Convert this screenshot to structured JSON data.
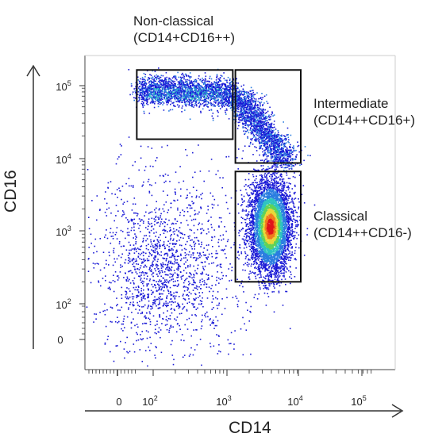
{
  "chart_data": {
    "type": "scatter",
    "xlabel": "CD14",
    "ylabel": "CD16",
    "x_scale": "log",
    "y_scale": "log",
    "x_ticks": [
      {
        "value": 0,
        "base": "0",
        "exp": ""
      },
      {
        "value": 100,
        "base": "10",
        "exp": "2"
      },
      {
        "value": 1000,
        "base": "10",
        "exp": "3"
      },
      {
        "value": 10000,
        "base": "10",
        "exp": "4"
      },
      {
        "value": 100000,
        "base": "10",
        "exp": "5"
      }
    ],
    "y_ticks": [
      {
        "value": 0,
        "base": "0",
        "exp": ""
      },
      {
        "value": 100,
        "base": "10",
        "exp": "2"
      },
      {
        "value": 1000,
        "base": "10",
        "exp": "3"
      },
      {
        "value": 10000,
        "base": "10",
        "exp": "4"
      },
      {
        "value": 100000,
        "base": "10",
        "exp": "5"
      }
    ],
    "gates": [
      {
        "name": "Non-classical",
        "subtitle": "(CD14+CD16++)",
        "x_range": [
          60,
          1200
        ],
        "y_range": [
          18000,
          160000
        ]
      },
      {
        "name": "Intermediate",
        "subtitle": "(CD14++CD16+)",
        "x_range": [
          1300,
          10000
        ],
        "y_range": [
          8500,
          160000
        ]
      },
      {
        "name": "Classical",
        "subtitle": "(CD14++CD16-)",
        "x_range": [
          1300,
          10000
        ],
        "y_range": [
          200,
          6500
        ]
      }
    ],
    "populations": [
      {
        "name": "Non-classical",
        "center_x": 300,
        "center_y": 85000,
        "peak_density": "medium"
      },
      {
        "name": "Intermediate",
        "center_x": 2500,
        "center_y": 30000,
        "peak_density": "medium"
      },
      {
        "name": "Classical",
        "center_x": 4500,
        "center_y": 1100,
        "peak_density": "high"
      },
      {
        "name": "CD14-low CD16-low",
        "center_x": 100,
        "center_y": 400,
        "peak_density": "low"
      }
    ],
    "density_colors": [
      "#1a1ad6",
      "#2a7de0",
      "#2fc4c0",
      "#5fd35a",
      "#e8d83a",
      "#f07a1e",
      "#e0141a"
    ],
    "grid": false,
    "legend": "none"
  }
}
